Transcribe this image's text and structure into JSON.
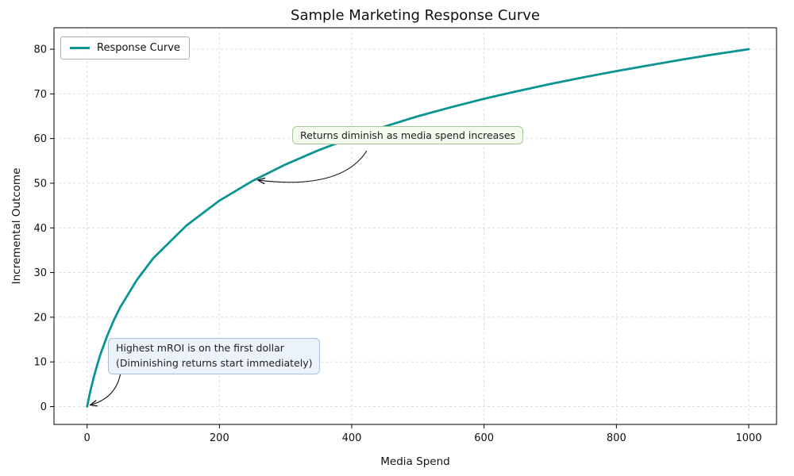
{
  "chart_data": {
    "type": "line",
    "title": "Sample Marketing Response Curve",
    "xlabel": "Media Spend",
    "ylabel": "Incremental Outcome",
    "grid": true,
    "legend_position": "upper left",
    "x_ticks": [
      0,
      200,
      400,
      600,
      800,
      1000
    ],
    "y_ticks": [
      0,
      10,
      20,
      30,
      40,
      50,
      60,
      70,
      80
    ],
    "xlim": [
      -50,
      1042
    ],
    "ylim": [
      -4,
      84.8
    ],
    "series": [
      {
        "name": "Response Curve",
        "x": [
          0,
          5,
          10,
          15,
          20,
          30,
          40,
          50,
          75,
          100,
          150,
          200,
          250,
          300,
          350,
          400,
          450,
          500,
          550,
          600,
          650,
          700,
          750,
          800,
          850,
          900,
          950,
          1000
        ],
        "y": [
          0,
          3.5,
          6.5,
          9.2,
          11.6,
          15.7,
          19.2,
          22.2,
          28.3,
          33.2,
          40.5,
          46.1,
          50.5,
          54.2,
          57.4,
          60.2,
          62.7,
          65.0,
          67.0,
          68.9,
          70.6,
          72.2,
          73.7,
          75.1,
          76.4,
          77.7,
          78.9,
          80.0
        ]
      }
    ],
    "annotations": [
      {
        "text": "Returns diminish as media spend increases",
        "target": {
          "x": 250,
          "y": 50.5
        },
        "bg": "#f3f9ec",
        "border": "#a5c79b"
      },
      {
        "text": "Highest mROI is on the first dollar\n(Diminishing returns start immediately)",
        "target": {
          "x": 0,
          "y": 0
        },
        "bg": "#ebf2fa",
        "border": "#a9c2d9"
      }
    ],
    "colors": {
      "curve": "#0c9494",
      "grid": "#d9d9d9",
      "frame": "#000000",
      "arrow": "#111111",
      "text": "#111111"
    }
  }
}
